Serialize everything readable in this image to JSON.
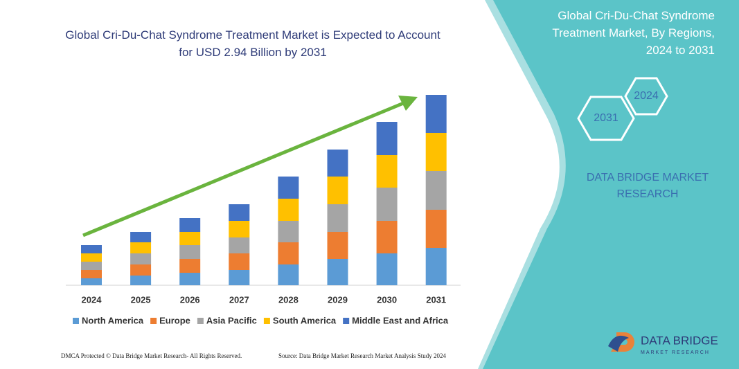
{
  "chart_data": {
    "type": "bar",
    "stacked": true,
    "title": "Global Cri-Du-Chat Syndrome Treatment Market is Expected to Account for USD 2.94 Billion by 2031",
    "categories": [
      "2024",
      "2025",
      "2026",
      "2027",
      "2028",
      "2029",
      "2030",
      "2031"
    ],
    "series": [
      {
        "name": "North America",
        "color": "#5b9bd5",
        "values": [
          10,
          14,
          18,
          22,
          30,
          38,
          46,
          54
        ]
      },
      {
        "name": "Europe",
        "color": "#ed7d31",
        "values": [
          12,
          16,
          20,
          24,
          32,
          39,
          47,
          55
        ]
      },
      {
        "name": "Asia Pacific",
        "color": "#a5a5a5",
        "values": [
          12,
          16,
          20,
          23,
          31,
          40,
          48,
          56
        ]
      },
      {
        "name": "South America",
        "color": "#ffc000",
        "values": [
          12,
          16,
          19,
          24,
          32,
          40,
          47,
          55
        ]
      },
      {
        "name": "Middle East and Africa",
        "color": "#4472c4",
        "values": [
          12,
          15,
          20,
          24,
          32,
          39,
          48,
          55
        ]
      }
    ],
    "legend": "bottom"
  },
  "side_panel": {
    "title": "Global Cri-Du-Chat Syndrome Treatment Market, By Regions, 2024 to 2031",
    "hexagons": [
      "2024",
      "2031"
    ],
    "brand": "DATA BRIDGE MARKET RESEARCH"
  },
  "logo": {
    "name": "DATA BRIDGE",
    "tagline": "MARKET RESEARCH"
  },
  "footer": {
    "left": "DMCA Protected © Data Bridge Market Research- All Rights Reserved.",
    "right": "Source: Data Bridge Market Research Market Analysis Study 2024"
  }
}
